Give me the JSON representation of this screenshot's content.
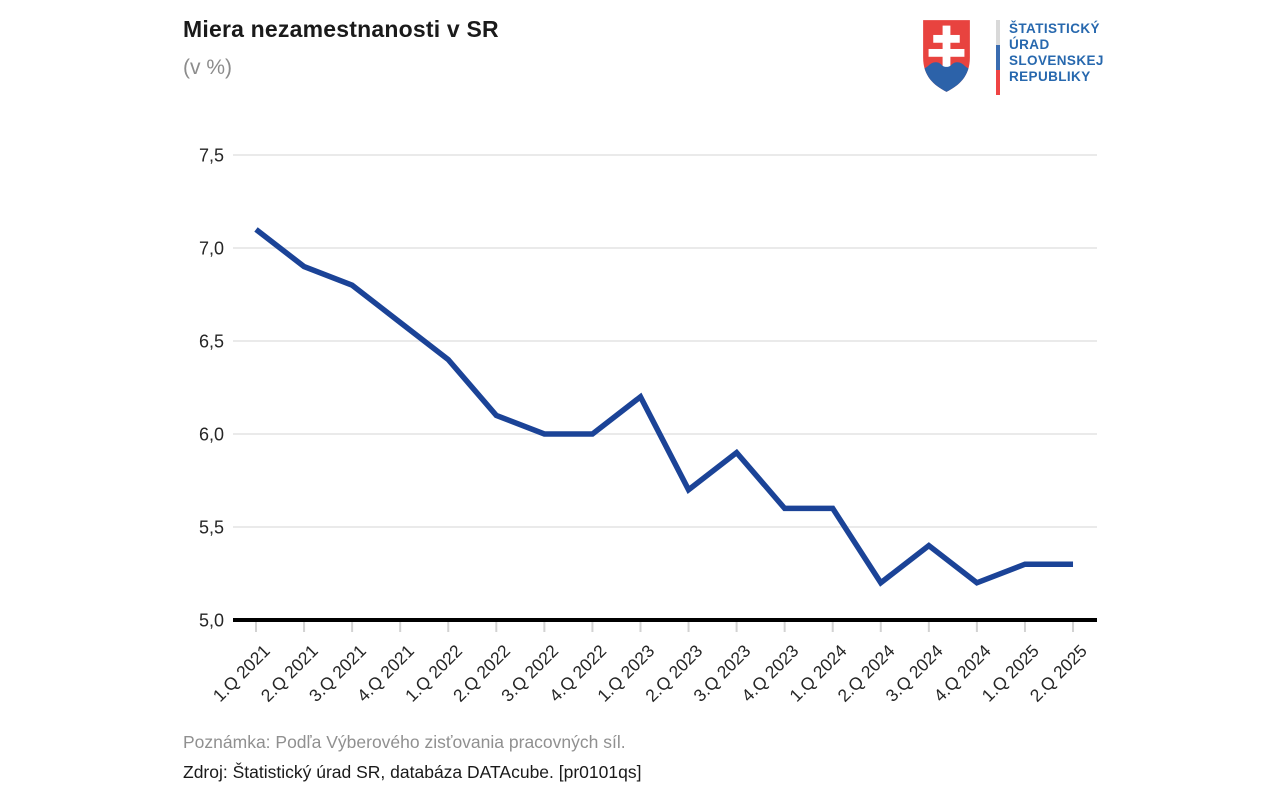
{
  "header": {
    "title": "Miera nezamestnanosti v SR",
    "subtitle": "(v %)"
  },
  "logo": {
    "org_lines": [
      "ŠTATISTICKÝ",
      "ÚRAD",
      "SLOVENSKEJ",
      "REPUBLIKY"
    ],
    "text_color": "#2768ae",
    "shield_red": "#e8433f",
    "mountain_blue": "#2c62a9",
    "flag_bar_colors": [
      "#d9d9d9",
      "#3a6cb0",
      "#ef4444"
    ]
  },
  "chart_data": {
    "type": "line",
    "title": "Miera nezamestnanosti v SR",
    "subtitle": "(v %)",
    "categories": [
      "1.Q 2021",
      "2.Q 2021",
      "3.Q 2021",
      "4.Q 2021",
      "1.Q 2022",
      "2.Q 2022",
      "3.Q 2022",
      "4.Q 2022",
      "1.Q 2023",
      "2.Q 2023",
      "3.Q 2023",
      "4.Q 2023",
      "1.Q 2024",
      "2.Q 2024",
      "3.Q 2024",
      "4.Q 2024",
      "1.Q 2025",
      "2.Q 2025"
    ],
    "values": [
      7.1,
      6.9,
      6.8,
      6.6,
      6.4,
      6.1,
      6.0,
      6.0,
      6.2,
      5.7,
      5.9,
      5.6,
      5.6,
      5.2,
      5.4,
      5.2,
      5.3,
      5.3
    ],
    "xlabel": "",
    "ylabel": "",
    "ylim": [
      5.0,
      7.5
    ],
    "ytick_step": 0.5,
    "ytick_labels": [
      "5,0",
      "5,5",
      "6,0",
      "6,5",
      "7,0",
      "7,5"
    ],
    "grid": true,
    "legend": "none",
    "line_color": "#1b4397",
    "axis_color": "#000000",
    "gridline_color": "#e3e3e3",
    "tick_color": "#d2d2d2",
    "label_color": "#262626"
  },
  "footer": {
    "note": "Poznámka: Podľa Výberového zisťovania pracovných síl.",
    "source": "Zdroj: Štatistický úrad SR, databáza DATAcube. [pr0101qs]"
  }
}
